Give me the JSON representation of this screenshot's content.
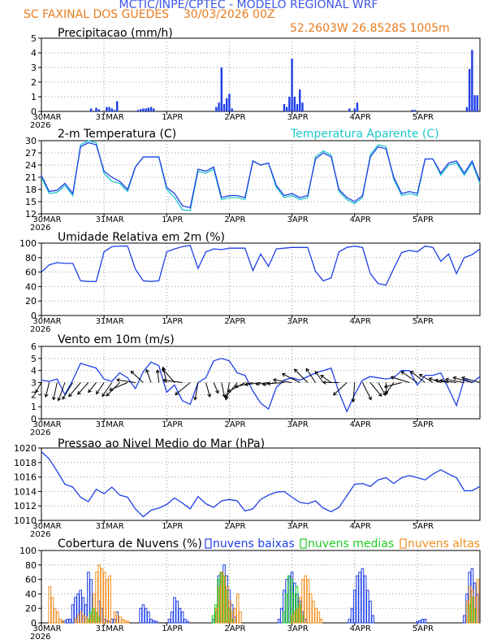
{
  "header": {
    "title": "MCTIC/INPE/CPTEC - MODELO REGIONAL WRF",
    "station": "SC FAXINAL DOS GUEDES",
    "run": "30/03/2026 00Z",
    "coords": "52.2603W 26.8528S 1005m"
  },
  "colors": {
    "title": "#3d57e8",
    "accent": "#e87b1e",
    "blue": "#1f3fe6",
    "cyan": "#20c8c8",
    "green": "#22cc22",
    "orange": "#f08f20"
  },
  "x_axis": {
    "ticks": [
      "30MAR",
      "31MAR",
      "1APR",
      "2APR",
      "3APR",
      "4APR",
      "5APR"
    ],
    "year": "2026"
  },
  "chart_data": [
    {
      "type": "bar",
      "title": "Precipitacao (mm/h)",
      "ylim": [
        0,
        5
      ],
      "yticks": [
        "0",
        "1",
        "2",
        "3",
        "4",
        "5"
      ],
      "x_hours": [
        19,
        21,
        22,
        25,
        26,
        27,
        28,
        29,
        37,
        38,
        39,
        40,
        41,
        42,
        43,
        67,
        68,
        69,
        70,
        71,
        72,
        73,
        93,
        94,
        95,
        96,
        97,
        98,
        99,
        100,
        118,
        120,
        121,
        142,
        143,
        163,
        164,
        165,
        166,
        167
      ],
      "values": [
        0.2,
        0.25,
        0.15,
        0.3,
        0.3,
        0.2,
        0.1,
        0.7,
        0.1,
        0.15,
        0.2,
        0.2,
        0.25,
        0.3,
        0.2,
        0.3,
        0.6,
        3.0,
        0.5,
        0.9,
        1.2,
        0.2,
        0.5,
        0.3,
        1.0,
        3.6,
        1.0,
        0.5,
        1.5,
        0.6,
        0.2,
        0.2,
        0.6,
        0.1,
        0.1,
        0.3,
        2.9,
        4.2,
        1.1,
        1.1
      ]
    },
    {
      "type": "line",
      "title": "2-m Temperatura (C)",
      "ylim": [
        12,
        30
      ],
      "yticks": [
        "12",
        "15",
        "18",
        "21",
        "24",
        "27",
        "30"
      ],
      "series": [
        {
          "name": "2-m Temperatura (C)",
          "x_hours": [
            0,
            3,
            6,
            9,
            12,
            15,
            18,
            21,
            24,
            27,
            30,
            33,
            36,
            39,
            42,
            45,
            48,
            51,
            54,
            57,
            60,
            63,
            66,
            69,
            72,
            75,
            78,
            81,
            84,
            87,
            90,
            93,
            96,
            99,
            102,
            105,
            108,
            111,
            114,
            117,
            120,
            123,
            126,
            129,
            132,
            135,
            138,
            141,
            144,
            147,
            150,
            153,
            156,
            159,
            162,
            165,
            168
          ],
          "values": [
            21.5,
            17.5,
            17.8,
            19.5,
            17.0,
            28.5,
            29.5,
            29.0,
            22.5,
            21.0,
            20.0,
            18.0,
            23.5,
            26.0,
            26.0,
            26.0,
            18.5,
            17.0,
            14.0,
            13.5,
            23.0,
            22.5,
            23.5,
            16.0,
            16.5,
            16.5,
            16.0,
            25.0,
            24.0,
            24.5,
            19.0,
            16.5,
            17.0,
            16.0,
            16.5,
            25.5,
            27.0,
            26.0,
            18.0,
            16.0,
            15.0,
            16.5,
            26.0,
            28.5,
            28.0,
            21.0,
            17.0,
            17.5,
            17.0,
            25.5,
            25.5,
            22.0,
            24.5,
            25.0,
            22.0,
            25.0,
            20.0
          ]
        },
        {
          "name": "Temperatura Aparente (C)",
          "x_hours": [
            0,
            3,
            6,
            9,
            12,
            15,
            18,
            21,
            24,
            27,
            30,
            33,
            36,
            39,
            42,
            45,
            48,
            51,
            54,
            57,
            60,
            63,
            66,
            69,
            72,
            75,
            78,
            81,
            84,
            87,
            90,
            93,
            96,
            99,
            102,
            105,
            108,
            111,
            114,
            117,
            120,
            123,
            126,
            129,
            132,
            135,
            138,
            141,
            144,
            147,
            150,
            153,
            156,
            159,
            162,
            165,
            168
          ],
          "values": [
            21.0,
            17.0,
            17.3,
            19.0,
            16.5,
            29.0,
            30.0,
            29.5,
            22.0,
            20.0,
            19.5,
            17.5,
            23.5,
            26.0,
            26.0,
            26.0,
            18.0,
            16.0,
            13.0,
            12.8,
            22.5,
            22.0,
            23.0,
            15.5,
            16.0,
            16.0,
            15.5,
            25.0,
            24.0,
            24.5,
            18.5,
            16.0,
            16.5,
            15.5,
            16.0,
            26.0,
            27.5,
            26.5,
            17.5,
            15.5,
            14.5,
            16.0,
            26.5,
            29.0,
            28.5,
            20.5,
            16.5,
            17.0,
            16.5,
            25.5,
            25.5,
            21.5,
            24.0,
            24.5,
            21.5,
            24.5,
            19.5
          ]
        }
      ]
    },
    {
      "type": "line",
      "title": "Umidade Relativa em 2m (%)",
      "ylim": [
        0,
        100
      ],
      "yticks": [
        "0",
        "20",
        "40",
        "60",
        "80",
        "100"
      ],
      "series": [
        {
          "name": "Umidade Relativa",
          "x_hours": [
            0,
            3,
            6,
            9,
            12,
            15,
            18,
            21,
            24,
            27,
            30,
            33,
            36,
            39,
            42,
            45,
            48,
            51,
            54,
            57,
            60,
            63,
            66,
            69,
            72,
            75,
            78,
            81,
            84,
            87,
            90,
            93,
            96,
            99,
            102,
            105,
            108,
            111,
            114,
            117,
            120,
            123,
            126,
            129,
            132,
            135,
            138,
            141,
            144,
            147,
            150,
            153,
            156,
            159,
            162,
            165,
            168
          ],
          "values": [
            60,
            70,
            73,
            72,
            72,
            48,
            47,
            47,
            88,
            95,
            96,
            96,
            64,
            48,
            47,
            48,
            88,
            92,
            95,
            97,
            65,
            88,
            92,
            91,
            93,
            93,
            93,
            62,
            85,
            68,
            92,
            93,
            94,
            94,
            94,
            61,
            48,
            52,
            88,
            94,
            96,
            94,
            58,
            44,
            42,
            65,
            87,
            90,
            88,
            96,
            94,
            75,
            85,
            58,
            80,
            84,
            92
          ]
        }
      ]
    },
    {
      "type": "line",
      "title": "Vento em 10m (m/s)",
      "ylim": [
        0,
        6
      ],
      "yticks": [
        "0",
        "1",
        "2",
        "3",
        "4",
        "5",
        "6"
      ],
      "series": [
        {
          "name": "Vento em 10m",
          "x_hours": [
            0,
            3,
            6,
            9,
            12,
            15,
            18,
            21,
            24,
            27,
            30,
            33,
            36,
            39,
            42,
            45,
            48,
            51,
            54,
            57,
            60,
            63,
            66,
            69,
            72,
            75,
            78,
            81,
            84,
            87,
            90,
            93,
            96,
            99,
            102,
            105,
            108,
            111,
            114,
            117,
            120,
            123,
            126,
            129,
            132,
            135,
            138,
            141,
            144,
            147,
            150,
            153,
            156,
            159,
            162,
            165,
            168
          ],
          "values": [
            3.2,
            3.1,
            3.3,
            2.0,
            3.2,
            4.6,
            4.4,
            4.2,
            3.3,
            3.1,
            3.8,
            3.4,
            2.5,
            3.9,
            4.7,
            4.4,
            2.2,
            2.8,
            1.5,
            1.2,
            3.0,
            3.4,
            4.8,
            5.0,
            4.8,
            3.8,
            3.6,
            2.3,
            1.3,
            0.8,
            2.6,
            3.2,
            3.4,
            3.2,
            3.5,
            3.8,
            4.0,
            4.2,
            2.2,
            0.6,
            2.0,
            3.2,
            3.5,
            3.4,
            3.3,
            3.4,
            4.0,
            4.0,
            2.8,
            3.6,
            3.6,
            3.8,
            2.5,
            1.1,
            3.3,
            3.0,
            3.5
          ]
        }
      ]
    },
    {
      "type": "line",
      "title": "Pressao ao Nivel Medio do Mar (hPa)",
      "ylim": [
        1010,
        1020
      ],
      "yticks": [
        "1010",
        "1012",
        "1014",
        "1016",
        "1018",
        "1020"
      ],
      "series": [
        {
          "name": "Pressao",
          "x_hours": [
            0,
            3,
            6,
            9,
            12,
            15,
            18,
            21,
            24,
            27,
            30,
            33,
            36,
            39,
            42,
            45,
            48,
            51,
            54,
            57,
            60,
            63,
            66,
            69,
            72,
            75,
            78,
            81,
            84,
            87,
            90,
            93,
            96,
            99,
            102,
            105,
            108,
            111,
            114,
            117,
            120,
            123,
            126,
            129,
            132,
            135,
            138,
            141,
            144,
            147,
            150,
            153,
            156,
            159,
            162,
            165,
            168
          ],
          "values": [
            1019.5,
            1018.5,
            1016.8,
            1015.0,
            1014.6,
            1013.2,
            1012.6,
            1014.3,
            1013.7,
            1014.6,
            1013.5,
            1013.2,
            1011.6,
            1010.5,
            1011.4,
            1011.7,
            1012.2,
            1013.1,
            1012.4,
            1011.6,
            1013.3,
            1012.3,
            1011.8,
            1012.7,
            1012.9,
            1012.7,
            1011.3,
            1011.6,
            1012.9,
            1013.5,
            1013.9,
            1014.0,
            1013.2,
            1012.5,
            1012.3,
            1012.7,
            1011.7,
            1011.2,
            1011.8,
            1013.4,
            1015.0,
            1015.1,
            1014.7,
            1015.6,
            1015.9,
            1015.1,
            1015.9,
            1016.2,
            1015.9,
            1015.6,
            1016.4,
            1017.0,
            1016.4,
            1015.9,
            1014.1,
            1014.1,
            1014.7
          ]
        }
      ]
    },
    {
      "type": "bar",
      "title": "Cobertura de Nuvens (%)",
      "ylim": [
        0,
        100
      ],
      "yticks": [
        "0",
        "20",
        "40",
        "60",
        "80",
        "100"
      ],
      "legend": [
        "nuvens baixas",
        "nuvens medias",
        "nuvens altas"
      ],
      "series": [
        {
          "name": "nuvens baixas",
          "x_hours": [
            8,
            9,
            10,
            11,
            12,
            13,
            14,
            15,
            16,
            17,
            18,
            19,
            22,
            23,
            24,
            25,
            26,
            27,
            28,
            29,
            38,
            39,
            40,
            41,
            42,
            43,
            44,
            49,
            50,
            51,
            52,
            53,
            54,
            55,
            56,
            66,
            67,
            68,
            69,
            70,
            71,
            72,
            73,
            74,
            91,
            92,
            93,
            94,
            95,
            96,
            97,
            98,
            99,
            100,
            101,
            118,
            119,
            120,
            121,
            122,
            123,
            124,
            125,
            126,
            127,
            144,
            145,
            146,
            147,
            162,
            163,
            164,
            165,
            166,
            167
          ],
          "values": [
            2,
            3,
            5,
            5,
            25,
            35,
            40,
            45,
            35,
            25,
            70,
            60,
            30,
            20,
            5,
            3,
            2,
            5,
            5,
            15,
            20,
            25,
            20,
            15,
            5,
            3,
            2,
            5,
            15,
            35,
            30,
            20,
            15,
            5,
            2,
            5,
            15,
            65,
            70,
            80,
            65,
            45,
            25,
            8,
            5,
            20,
            45,
            60,
            65,
            70,
            55,
            40,
            30,
            15,
            5,
            5,
            20,
            45,
            65,
            70,
            75,
            65,
            45,
            30,
            10,
            2,
            3,
            5,
            5,
            10,
            40,
            70,
            75,
            55,
            40
          ]
        },
        {
          "name": "nuvens medias",
          "x_hours": [
            18,
            19,
            20,
            21,
            22,
            66,
            67,
            68,
            69,
            70,
            71,
            72,
            73,
            93,
            94,
            95,
            96,
            97,
            98,
            99,
            100,
            164,
            165,
            166
          ],
          "values": [
            5,
            15,
            20,
            15,
            8,
            10,
            25,
            60,
            70,
            65,
            45,
            20,
            5,
            15,
            40,
            65,
            60,
            40,
            50,
            25,
            10,
            25,
            35,
            20
          ]
        },
        {
          "name": "nuvens altas",
          "x_hours": [
            3,
            4,
            5,
            6,
            7,
            8,
            13,
            14,
            15,
            16,
            17,
            18,
            19,
            20,
            21,
            22,
            23,
            24,
            25,
            26,
            28,
            29,
            30,
            31,
            32,
            33,
            67,
            68,
            69,
            70,
            71,
            72,
            73,
            74,
            75,
            76,
            96,
            97,
            98,
            99,
            100,
            101,
            102,
            103,
            104,
            105,
            106,
            107,
            163,
            164,
            165,
            166,
            167
          ],
          "values": [
            50,
            35,
            20,
            15,
            5,
            3,
            5,
            10,
            15,
            10,
            8,
            5,
            10,
            40,
            70,
            80,
            75,
            70,
            60,
            65,
            15,
            10,
            8,
            5,
            3,
            2,
            20,
            50,
            70,
            65,
            50,
            30,
            15,
            20,
            40,
            15,
            10,
            15,
            20,
            35,
            60,
            65,
            60,
            40,
            30,
            20,
            15,
            5,
            30,
            50,
            45,
            35,
            60
          ]
        }
      ]
    }
  ]
}
